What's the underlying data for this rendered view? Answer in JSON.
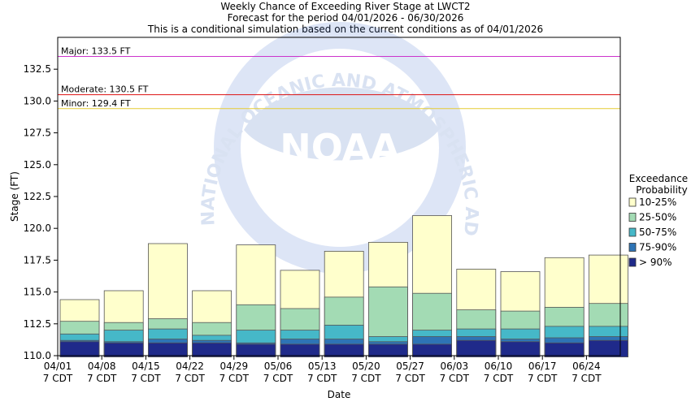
{
  "chart_data": {
    "type": "bar",
    "title": "Weekly Chance of Exceeding River Stage at LWCT2",
    "subtitle": "Forecast for the period 04/01/2026 - 06/30/2026",
    "subtitle2": "This is a conditional simulation based on the current conditions as of 04/01/2026",
    "xlabel": "Date",
    "ylabel": "Stage (FT)",
    "ylim": [
      110.0,
      135.0
    ],
    "yticks": [
      "110.0",
      "112.5",
      "115.0",
      "117.5",
      "120.0",
      "122.5",
      "125.0",
      "127.5",
      "130.0",
      "132.5"
    ],
    "xticks": [
      "04/01",
      "04/08",
      "04/15",
      "04/22",
      "04/29",
      "05/06",
      "05/13",
      "05/20",
      "05/27",
      "06/03",
      "06/10",
      "06/17",
      "06/24"
    ],
    "xtick_sub": "7 CDT",
    "categories": [
      "04/01",
      "04/08",
      "04/15",
      "04/22",
      "04/29",
      "05/06",
      "05/13",
      "05/20",
      "05/27",
      "06/03",
      "06/10",
      "06/17",
      "06/24"
    ],
    "baseline": 109.9,
    "series": [
      {
        "name": "> 90%",
        "color": "#1f2a8a",
        "values": [
          111.1,
          111.0,
          111.0,
          111.0,
          110.9,
          110.9,
          110.9,
          110.9,
          110.9,
          111.2,
          111.1,
          111.0,
          111.2
        ]
      },
      {
        "name": "75-90%",
        "color": "#2e74b5",
        "values": [
          111.2,
          111.1,
          111.3,
          111.2,
          111.0,
          111.3,
          111.3,
          111.1,
          111.5,
          111.5,
          111.3,
          111.4,
          111.5
        ]
      },
      {
        "name": "50-75%",
        "color": "#46b8c8",
        "values": [
          111.7,
          112.0,
          112.1,
          111.6,
          112.0,
          112.0,
          112.4,
          111.5,
          112.0,
          112.1,
          112.1,
          112.3,
          112.3
        ]
      },
      {
        "name": "25-50%",
        "color": "#a3dbb4",
        "values": [
          112.7,
          112.6,
          112.9,
          112.6,
          114.0,
          113.7,
          114.6,
          115.4,
          114.9,
          113.6,
          113.5,
          113.8,
          114.1
        ]
      },
      {
        "name": "10-25%",
        "color": "#ffffcc",
        "values": [
          114.4,
          115.1,
          118.8,
          115.1,
          118.7,
          116.7,
          118.2,
          118.9,
          121.0,
          116.8,
          116.6,
          117.7,
          117.9
        ]
      }
    ],
    "flood_levels": [
      {
        "label": "Major: 133.5 FT",
        "value": 133.5,
        "color": "#cc33cc"
      },
      {
        "label": "Moderate: 130.5 FT",
        "value": 130.5,
        "color": "#dd1111"
      },
      {
        "label": "Minor: 129.4 FT",
        "value": 129.4,
        "color": "#e6cc33"
      }
    ],
    "watermark": "NATIONAL OCEANIC AND ATMOSPHERIC ADMINISTRATION",
    "watermark_logo": "NOAA",
    "legend": {
      "title_line1": "Exceedance",
      "title_line2": "Probability",
      "placement": "right",
      "order": [
        "10-25%",
        "25-50%",
        "50-75%",
        "75-90%",
        "> 90%"
      ]
    },
    "grid": false
  }
}
